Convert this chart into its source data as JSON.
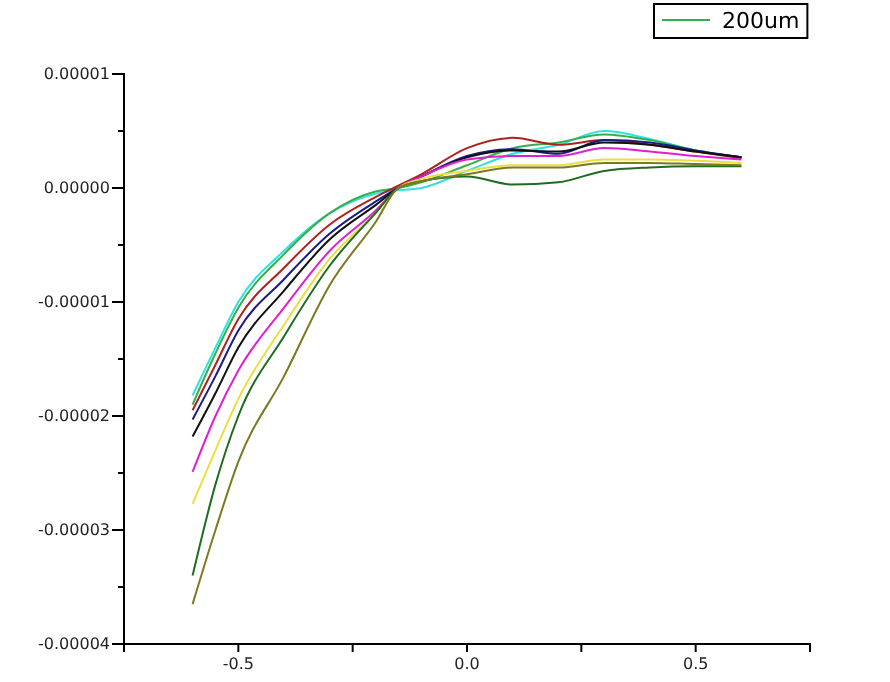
{
  "chart_data": {
    "type": "line",
    "x": [
      -0.6,
      -0.55,
      -0.5,
      -0.4,
      -0.3,
      -0.2,
      -0.15,
      -0.1,
      0,
      0.1,
      0.2,
      0.3,
      0.4,
      0.5,
      0.6
    ],
    "series": [
      {
        "color": "#33e0e0",
        "values": [
          -1.82e-05,
          -1.4e-05,
          -1e-05,
          -5.5e-06,
          -2.2e-06,
          -5e-07,
          -2e-07,
          0,
          1.5e-06,
          3e-06,
          3.8e-06,
          5e-06,
          4.3e-06,
          3.3e-06,
          2.7e-06
        ]
      },
      {
        "name": "200um",
        "color": "#33b04a",
        "values": [
          -1.9e-05,
          -1.45e-05,
          -1.05e-05,
          -5.8e-06,
          -2.2e-06,
          -3e-07,
          0,
          5e-07,
          2e-06,
          3.5e-06,
          4e-06,
          4.7e-06,
          4.2e-06,
          3.3e-06,
          2.7e-06
        ]
      },
      {
        "color": "#b02020",
        "values": [
          -1.95e-05,
          -1.55e-05,
          -1.15e-05,
          -7e-06,
          -3.2e-06,
          -8e-07,
          2e-07,
          1.2e-06,
          3.5e-06,
          4.4e-06,
          3.8e-06,
          4.2e-06,
          3.8e-06,
          3.2e-06,
          2.6e-06
        ]
      },
      {
        "color": "#1a1a8c",
        "values": [
          -2.03e-05,
          -1.65e-05,
          -1.25e-05,
          -8e-06,
          -4e-06,
          -1.2e-06,
          0,
          1e-06,
          2.8e-06,
          3.4e-06,
          3e-06,
          4.2e-06,
          4e-06,
          3.3e-06,
          2.7e-06
        ]
      },
      {
        "color": "#111111",
        "values": [
          -2.18e-05,
          -1.8e-05,
          -1.4e-05,
          -9e-06,
          -4.5e-06,
          -1.5e-06,
          0,
          1e-06,
          2.7e-06,
          3.3e-06,
          3.2e-06,
          4e-06,
          3.8e-06,
          3.2e-06,
          2.7e-06
        ]
      },
      {
        "color": "#e020d0",
        "values": [
          -2.49e-05,
          -2e-05,
          -1.6e-05,
          -1.05e-05,
          -5.5e-06,
          -2e-06,
          0,
          1e-06,
          2.5e-06,
          2.8e-06,
          2.8e-06,
          3.5e-06,
          3.2e-06,
          2.8e-06,
          2.5e-06
        ]
      },
      {
        "color": "#e8e040",
        "values": [
          -2.77e-05,
          -2.3e-05,
          -1.85e-05,
          -1.2e-05,
          -6.2e-06,
          -2.2e-06,
          0,
          8e-07,
          1.5e-06,
          2e-06,
          2e-06,
          2.5e-06,
          2.5e-06,
          2.4e-06,
          2.2e-06
        ]
      },
      {
        "color": "#1f6b1f",
        "values": [
          -3.4e-05,
          -2.6e-05,
          -2e-05,
          -1.3e-05,
          -6.8e-06,
          -2.2e-06,
          0,
          6e-07,
          1e-06,
          3e-07,
          5e-07,
          1.5e-06,
          1.8e-06,
          1.9e-06,
          1.9e-06
        ]
      },
      {
        "color": "#7a7a20",
        "values": [
          -3.65e-05,
          -3e-05,
          -2.4e-05,
          -1.65e-05,
          -8.5e-06,
          -3e-06,
          0,
          6e-07,
          1.2e-06,
          1.8e-06,
          1.8e-06,
          2.2e-06,
          2.2e-06,
          2.1e-06,
          2e-06
        ]
      }
    ],
    "xlim": [
      -0.75,
      0.75
    ],
    "xticks": [
      {
        "value": -0.75,
        "label": null
      },
      {
        "value": -0.5,
        "label": "-0.5"
      },
      {
        "value": -0.25,
        "label": null
      },
      {
        "value": 0,
        "label": "0.0"
      },
      {
        "value": 0.25,
        "label": null
      },
      {
        "value": 0.5,
        "label": "0.5"
      },
      {
        "value": 0.75,
        "label": null
      }
    ],
    "ylim": [
      -4e-05,
      1e-05
    ],
    "yticks": [
      {
        "value": 1e-05,
        "label": "0.00001"
      },
      {
        "value": 5e-06,
        "label": null
      },
      {
        "value": 0,
        "label": "0.00000"
      },
      {
        "value": -5e-06,
        "label": null
      },
      {
        "value": -1e-05,
        "label": "-0.00001"
      },
      {
        "value": -1.5e-05,
        "label": null
      },
      {
        "value": -2e-05,
        "label": "-0.00002"
      },
      {
        "value": -2.5e-05,
        "label": null
      },
      {
        "value": -3e-05,
        "label": "-0.00003"
      },
      {
        "value": -3.5e-05,
        "label": null
      },
      {
        "value": -4e-05,
        "label": "-0.00004"
      }
    ],
    "legend": "top right",
    "marker": "none",
    "line_style": "solid"
  }
}
